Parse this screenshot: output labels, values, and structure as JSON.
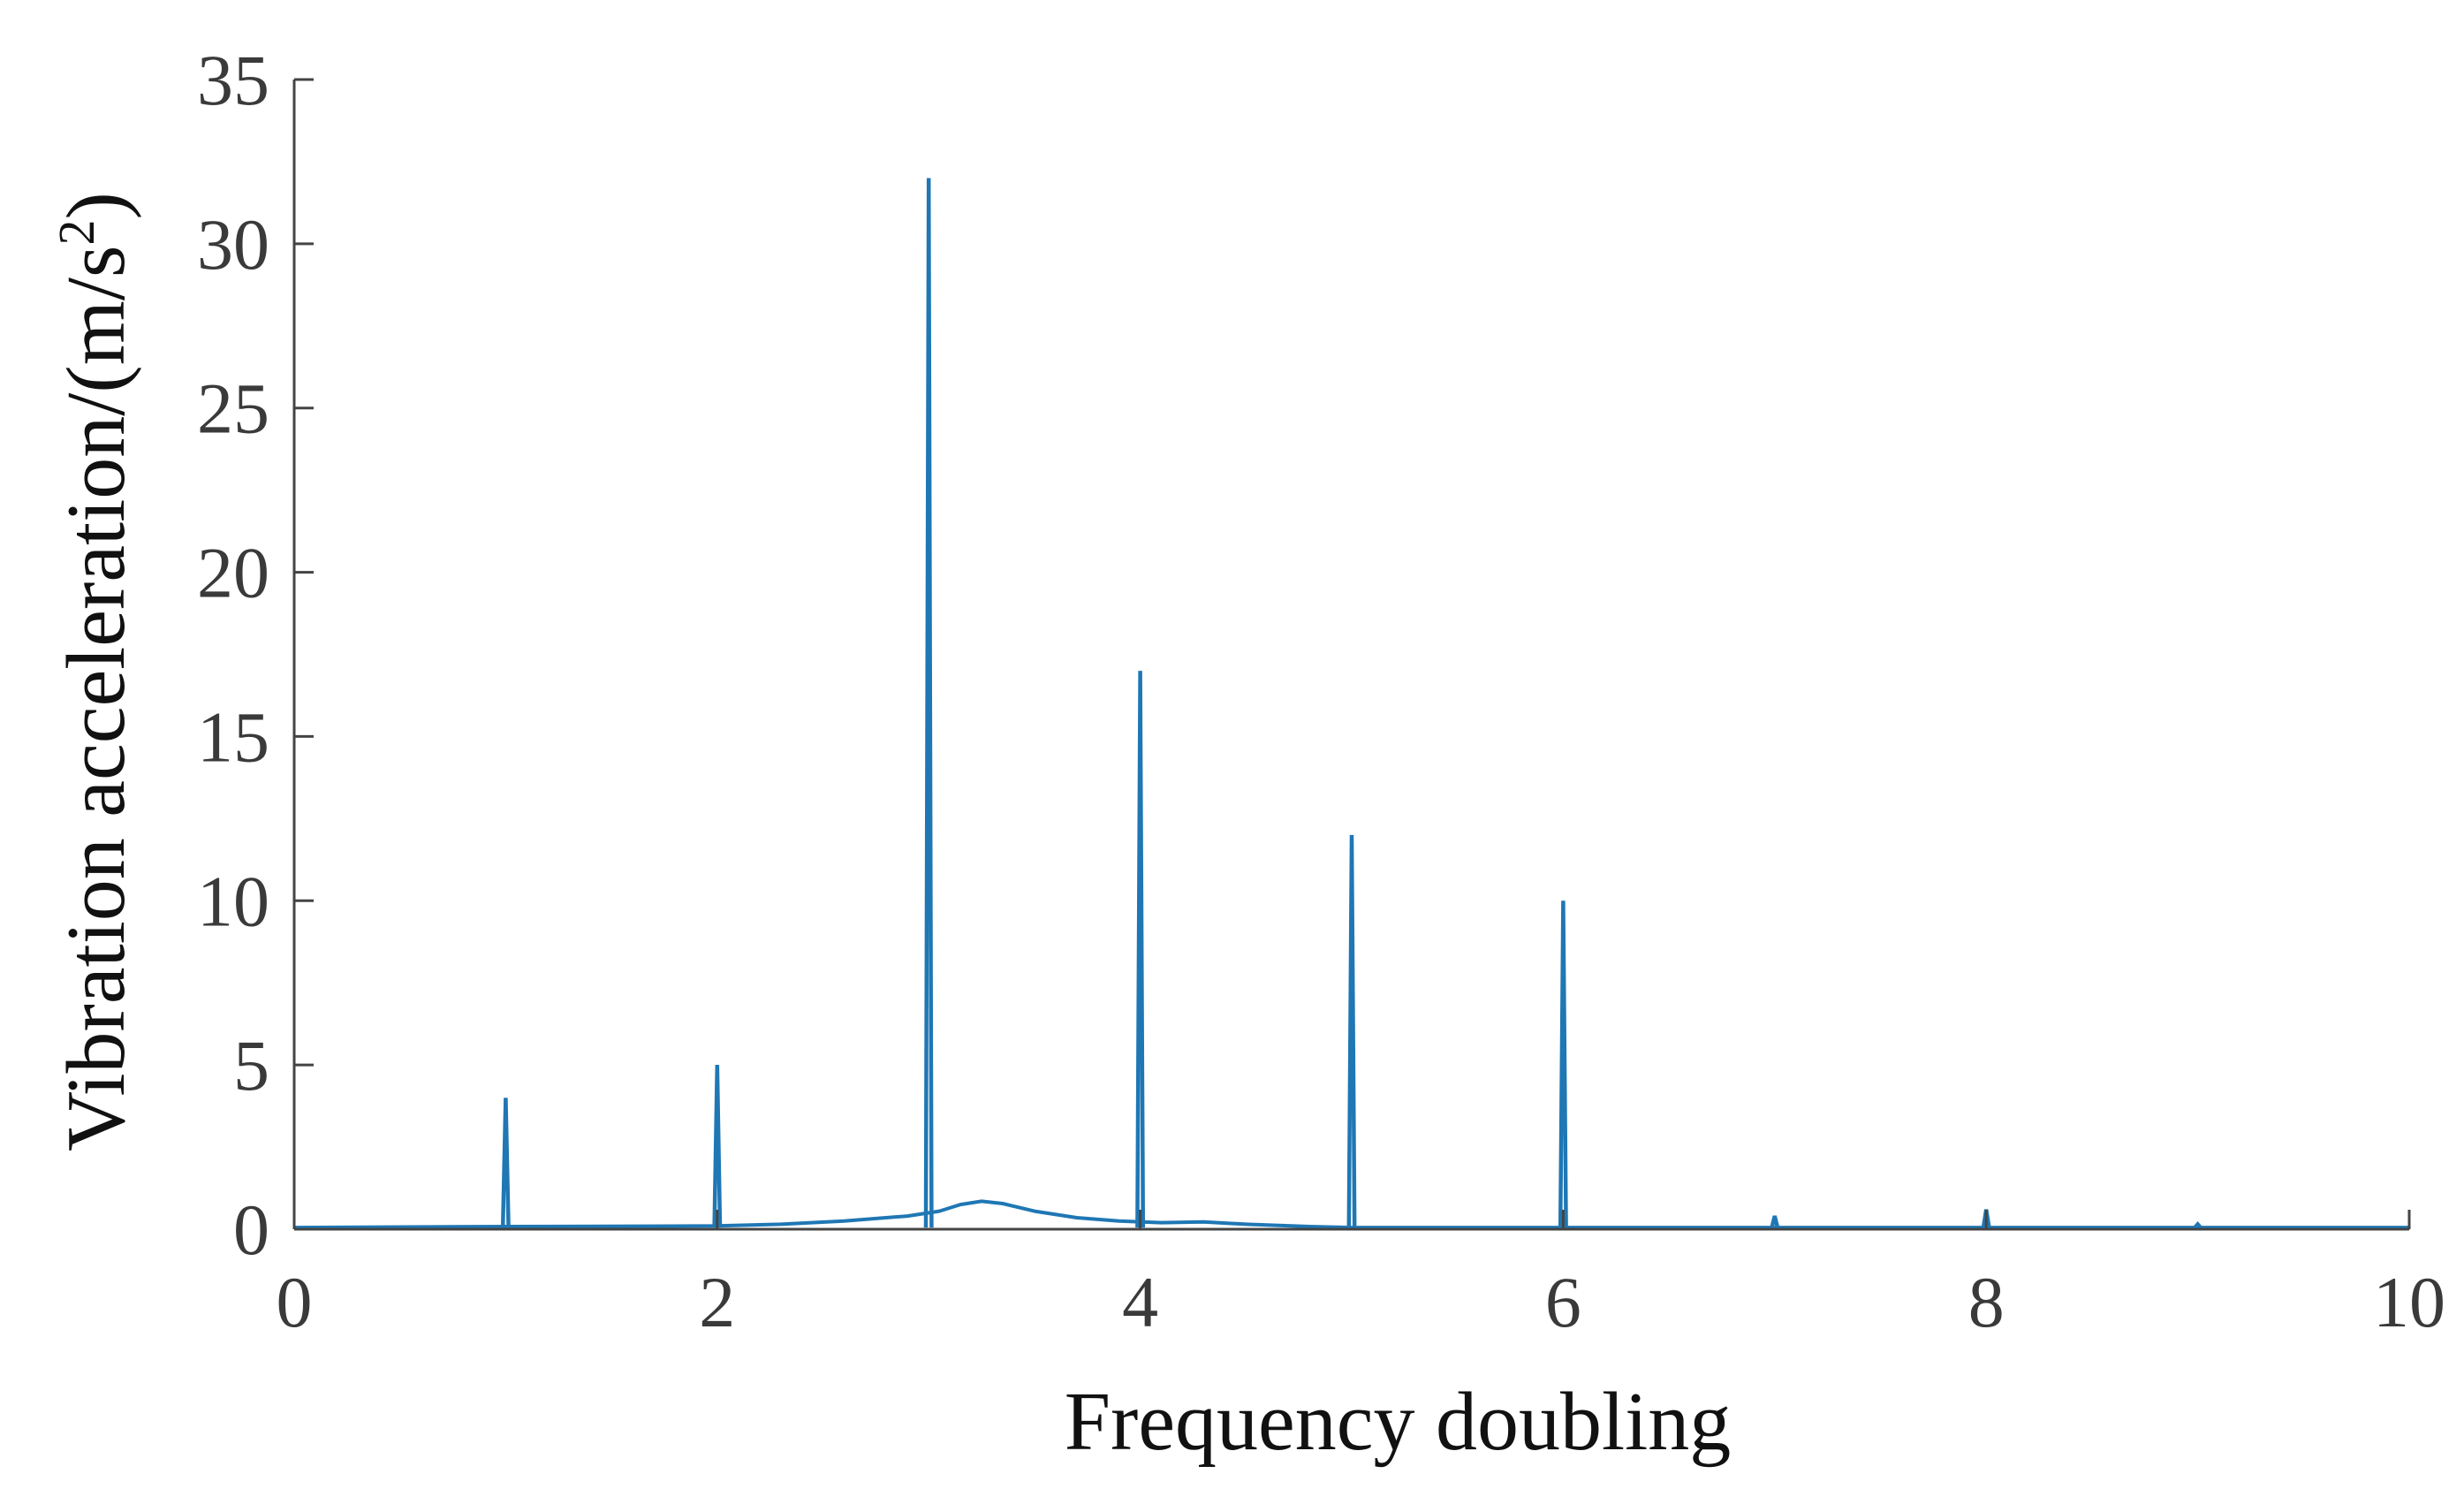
{
  "chart_data": {
    "type": "line",
    "title": "",
    "xlabel": "Frequency doubling",
    "ylabel": "Vibration acceleration/(m/s",
    "ylabel_sup": "2",
    "ylabel_suffix": ")",
    "xlim": [
      0,
      10
    ],
    "ylim": [
      0,
      35
    ],
    "xticks": [
      0,
      2,
      4,
      6,
      8,
      10
    ],
    "yticks": [
      0,
      5,
      10,
      15,
      20,
      25,
      30,
      35
    ],
    "grid": false,
    "legend": "none",
    "line_color": "#1f77b4",
    "axis_color": "#444444",
    "spikes": [
      {
        "x": 1,
        "y": 4
      },
      {
        "x": 2,
        "y": 5
      },
      {
        "x": 3,
        "y": 32
      },
      {
        "x": 4,
        "y": 17
      },
      {
        "x": 5,
        "y": 12
      },
      {
        "x": 6,
        "y": 10
      },
      {
        "x": 7,
        "y": 0.4
      },
      {
        "x": 8,
        "y": 0.6
      },
      {
        "x": 9,
        "y": 0.15
      }
    ],
    "baseline": {
      "x": [
        0,
        1,
        2,
        2.3,
        2.6,
        2.9,
        3.05,
        3.15,
        3.25,
        3.35,
        3.5,
        3.7,
        3.9,
        4.1,
        4.3,
        4.5,
        4.8,
        5,
        6,
        7,
        8,
        9,
        10
      ],
      "y": [
        0.05,
        0.08,
        0.1,
        0.15,
        0.25,
        0.4,
        0.55,
        0.75,
        0.85,
        0.78,
        0.55,
        0.35,
        0.25,
        0.2,
        0.22,
        0.15,
        0.08,
        0.05,
        0.05,
        0.05,
        0.05,
        0.05,
        0.05
      ]
    }
  }
}
